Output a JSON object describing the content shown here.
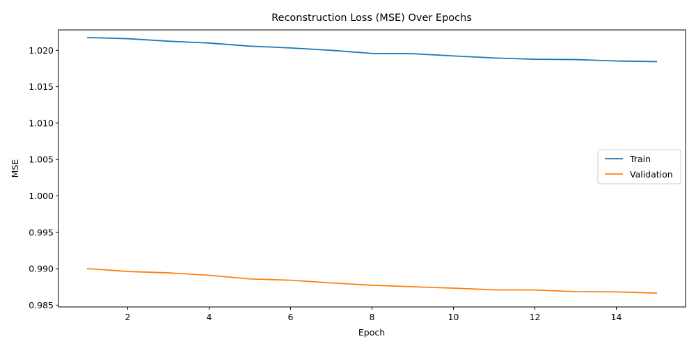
{
  "chart_data": {
    "type": "line",
    "title": "Reconstruction Loss (MSE) Over Epochs",
    "xlabel": "Epoch",
    "ylabel": "MSE",
    "x": [
      1,
      2,
      3,
      4,
      5,
      6,
      7,
      8,
      9,
      10,
      11,
      12,
      13,
      14,
      15
    ],
    "xlim": [
      0.3,
      15.7
    ],
    "ylim": [
      0.98475,
      1.0228
    ],
    "x_ticks": [
      2,
      4,
      6,
      8,
      10,
      12,
      14
    ],
    "y_ticks": [
      0.985,
      0.99,
      0.995,
      1.0,
      1.005,
      1.01,
      1.015,
      1.02
    ],
    "x_tick_labels": [
      "2",
      "4",
      "6",
      "8",
      "10",
      "12",
      "14"
    ],
    "y_tick_labels": [
      "0.985",
      "0.990",
      "0.995",
      "1.000",
      "1.005",
      "1.010",
      "1.015",
      "1.020"
    ],
    "grid": false,
    "legend_position": "center-right",
    "series": [
      {
        "name": "Train",
        "color": "#1f77b4",
        "values": [
          1.02175,
          1.0216,
          1.02125,
          1.021,
          1.02057,
          1.02033,
          1.02,
          1.01957,
          1.01953,
          1.01923,
          1.01895,
          1.01877,
          1.01873,
          1.01853,
          1.01845
        ]
      },
      {
        "name": "Validation",
        "color": "#ff7f0e",
        "values": [
          0.99002,
          0.98962,
          0.98943,
          0.9891,
          0.9886,
          0.98842,
          0.98805,
          0.98773,
          0.98752,
          0.98733,
          0.9871,
          0.98708,
          0.98685,
          0.98682,
          0.98665
        ]
      }
    ]
  }
}
